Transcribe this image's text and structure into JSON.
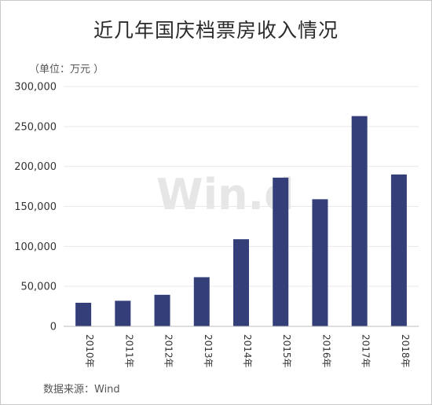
{
  "chart_data": {
    "type": "bar",
    "title": "近几年国庆档票房收入情况",
    "unit_label": "（单位：万元 ）",
    "source": "数据来源：Wind",
    "watermark": "Win.d",
    "categories": [
      "2010年",
      "2011年",
      "2012年",
      "2013年",
      "2014年",
      "2015年",
      "2016年",
      "2017年",
      "2018年"
    ],
    "values": [
      29500,
      32000,
      39500,
      61500,
      109000,
      186000,
      159000,
      263000,
      190000
    ],
    "ylim": [
      0,
      300000
    ],
    "yticks": [
      0,
      50000,
      100000,
      150000,
      200000,
      250000,
      300000
    ],
    "ytick_labels": [
      "0",
      "50,000",
      "100,000",
      "150,000",
      "200,000",
      "250,000",
      "300,000"
    ],
    "bar_color": "#343f79",
    "grid": true
  }
}
